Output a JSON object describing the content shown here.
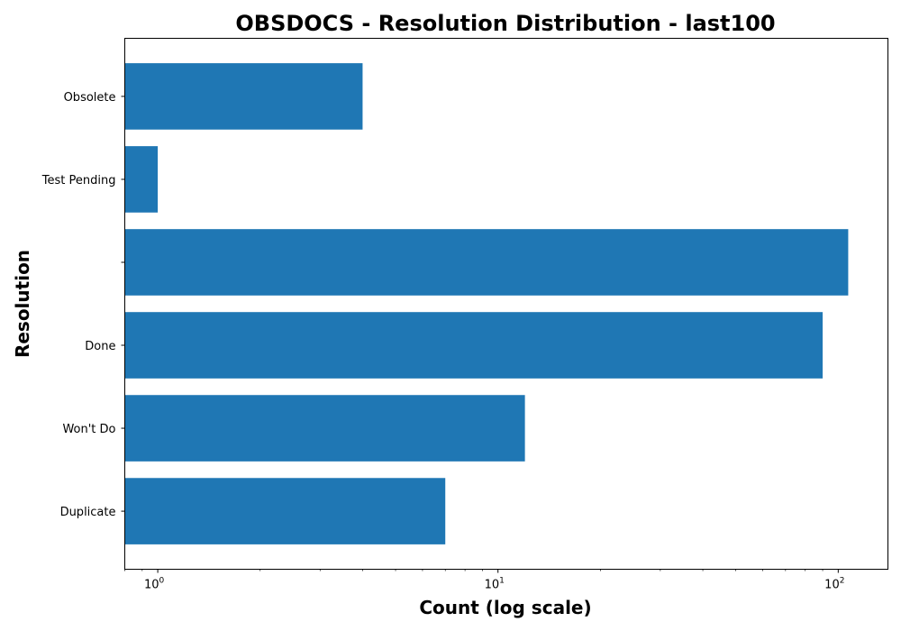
{
  "chart_data": {
    "type": "bar",
    "orientation": "horizontal",
    "title": "OBSDOCS - Resolution Distribution - last100",
    "xlabel": "Count (log scale)",
    "ylabel": "Resolution",
    "xscale": "log",
    "xlim": [
      0.8,
      140
    ],
    "x_ticks": [
      {
        "value": 1,
        "base": "10",
        "exp": "0"
      },
      {
        "value": 10,
        "base": "10",
        "exp": "1"
      },
      {
        "value": 100,
        "base": "10",
        "exp": "2"
      }
    ],
    "categories": [
      "Duplicate",
      "Won't Do",
      "Done",
      "",
      "Test Pending",
      "Obsolete"
    ],
    "values": [
      7,
      12,
      90,
      107,
      1,
      4
    ],
    "bar_color": "#1f77b4",
    "grid": false,
    "legend": "none"
  }
}
